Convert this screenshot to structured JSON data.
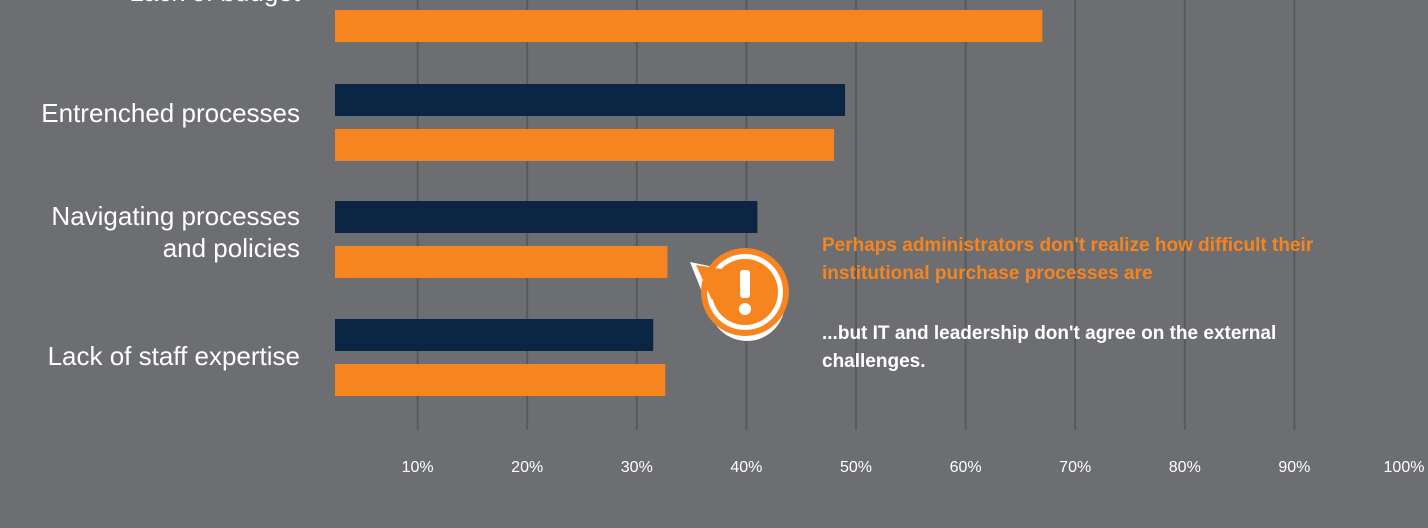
{
  "chart_data": {
    "type": "bar",
    "orientation": "horizontal",
    "categories": [
      "Lack of budget",
      "Entrenched processes",
      "Navigating processes and policies",
      "Lack of staff expertise"
    ],
    "category_lines": [
      [
        "Lack of budget"
      ],
      [
        "Entrenched processes"
      ],
      [
        "Navigating processes",
        "and policies"
      ],
      [
        "Lack of staff expertise"
      ]
    ],
    "series": [
      {
        "color": "#0b2545",
        "values": [
          null,
          49,
          41,
          31.5
        ]
      },
      {
        "color": "#f6851f",
        "values": [
          67,
          48,
          32.8,
          32.6
        ]
      }
    ],
    "xlim": [
      0,
      100
    ],
    "xticks": [
      "10%",
      "20%",
      "30%",
      "40%",
      "50%",
      "60%",
      "70%",
      "80%",
      "90%",
      "100%"
    ],
    "grid": true
  },
  "callout": {
    "icon": "exclamation-icon",
    "icon_color": "#f6851f",
    "headline": "Perhaps administrators don't realize how difficult their institutional purchase processes are",
    "body": "...but IT and leadership don't agree on the external challenges."
  }
}
